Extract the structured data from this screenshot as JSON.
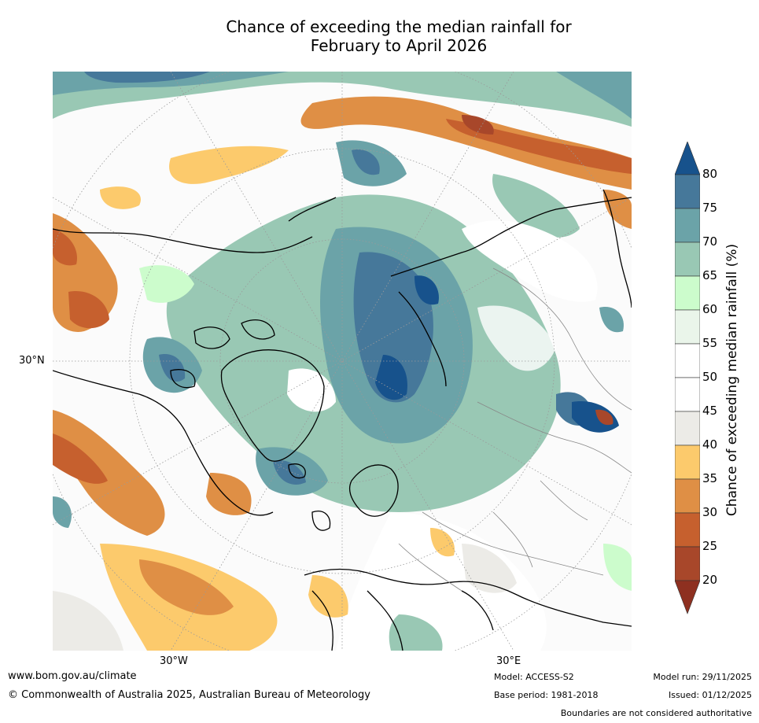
{
  "title": {
    "line1": "Chance of exceeding the median rainfall for",
    "line2": "February to April 2026"
  },
  "map": {
    "projection": "north polar stereographic",
    "lat_label_left": "30°N",
    "lon_label_left": "30°W",
    "lon_label_right": "30°E"
  },
  "colorbar": {
    "title": "Chance of exceeding median rainfall (%)",
    "tick_labels": [
      "80",
      "75",
      "70",
      "65",
      "60",
      "55",
      "50",
      "45",
      "40",
      "35",
      "30",
      "25",
      "20"
    ],
    "bins": [
      {
        "range": ">80",
        "color": "#17528c"
      },
      {
        "range": "75-80",
        "color": "#46789a"
      },
      {
        "range": "70-75",
        "color": "#6ba3a8"
      },
      {
        "range": "65-70",
        "color": "#99c8b4"
      },
      {
        "range": "60-65",
        "color": "#ccfccc"
      },
      {
        "range": "55-60",
        "color": "#eaf5ea"
      },
      {
        "range": "50-55",
        "color": "#ffffff"
      },
      {
        "range": "45-50",
        "color": "#ffffff"
      },
      {
        "range": "40-45",
        "color": "#ecebe7"
      },
      {
        "range": "35-40",
        "color": "#fcca6c"
      },
      {
        "range": "30-35",
        "color": "#df8f45"
      },
      {
        "range": "25-30",
        "color": "#c6602e"
      },
      {
        "range": "20-25",
        "color": "#a8472a"
      },
      {
        "range": "<20",
        "color": "#8e3020"
      }
    ]
  },
  "footer": {
    "url": "www.bom.gov.au/climate",
    "copyright": "© Commonwealth of Australia 2025, Australian Bureau of Meteorology",
    "model": "Model: ACCESS-S2",
    "base_period": "Base period: 1981-2018",
    "model_run": "Model run: 29/11/2025",
    "issued": "Issued: 01/12/2025",
    "disclaimer": "Boundaries are not considered authoritative"
  }
}
